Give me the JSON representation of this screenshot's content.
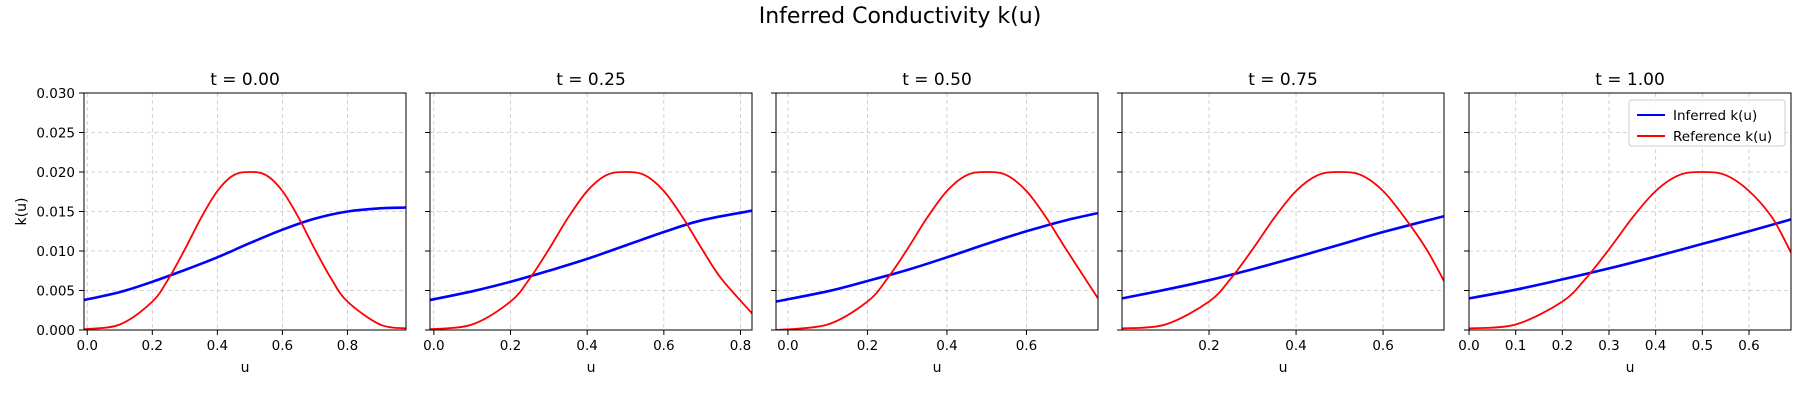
{
  "figure": {
    "title": "Inferred Conductivity k(u)"
  },
  "colors": {
    "inferred": "#0000ff",
    "reference": "#ff0000",
    "grid": "#b0b0b0"
  },
  "chart_data": [
    {
      "type": "line",
      "title": "t = 0.00",
      "xlabel": "u",
      "ylabel": "k(u)",
      "xlim": [
        -0.01,
        0.98
      ],
      "ylim": [
        0,
        0.03
      ],
      "xticks": [
        "0.0",
        "0.2",
        "0.4",
        "0.6",
        "0.8"
      ],
      "yticks": [
        "0.000",
        "0.005",
        "0.010",
        "0.015",
        "0.020",
        "0.025",
        "0.030"
      ],
      "series": [
        {
          "name": "Inferred k(u)",
          "color": "#0000ff",
          "x": [
            -0.01,
            0.1,
            0.2,
            0.3,
            0.4,
            0.5,
            0.6,
            0.7,
            0.8,
            0.9,
            0.98
          ],
          "y": [
            0.0038,
            0.0048,
            0.0061,
            0.0076,
            0.0092,
            0.011,
            0.0127,
            0.0141,
            0.015,
            0.0154,
            0.0155
          ]
        },
        {
          "name": "Reference k(u)",
          "color": "#ff0000",
          "x": [
            -0.01,
            0.1,
            0.2,
            0.25,
            0.3,
            0.35,
            0.4,
            0.45,
            0.5,
            0.55,
            0.6,
            0.65,
            0.7,
            0.75,
            0.8,
            0.9,
            0.98
          ],
          "y": [
            0.0001,
            0.0007,
            0.0036,
            0.0065,
            0.0102,
            0.0142,
            0.0176,
            0.0196,
            0.02,
            0.0196,
            0.0176,
            0.0142,
            0.0102,
            0.0065,
            0.0036,
            0.0007,
            0.0002
          ]
        }
      ]
    },
    {
      "type": "line",
      "title": "t = 0.25",
      "xlabel": "u",
      "ylabel": "",
      "xlim": [
        -0.01,
        0.83
      ],
      "ylim": [
        0,
        0.03
      ],
      "xticks": [
        "0.0",
        "0.2",
        "0.4",
        "0.6",
        "0.8"
      ],
      "yticks": [],
      "series": [
        {
          "name": "Inferred k(u)",
          "color": "#0000ff",
          "x": [
            -0.01,
            0.1,
            0.2,
            0.3,
            0.4,
            0.5,
            0.6,
            0.7,
            0.83
          ],
          "y": [
            0.0038,
            0.0049,
            0.0061,
            0.0075,
            0.009,
            0.0107,
            0.0124,
            0.0139,
            0.0151
          ]
        },
        {
          "name": "Reference k(u)",
          "color": "#ff0000",
          "x": [
            -0.01,
            0.1,
            0.2,
            0.25,
            0.3,
            0.35,
            0.4,
            0.45,
            0.5,
            0.55,
            0.6,
            0.65,
            0.7,
            0.75,
            0.83
          ],
          "y": [
            0.0001,
            0.0007,
            0.0036,
            0.0065,
            0.0102,
            0.0142,
            0.0176,
            0.0196,
            0.02,
            0.0196,
            0.0176,
            0.0142,
            0.0102,
            0.0065,
            0.0021
          ]
        }
      ]
    },
    {
      "type": "line",
      "title": "t = 0.50",
      "xlabel": "u",
      "ylabel": "",
      "xlim": [
        -0.03,
        0.78
      ],
      "ylim": [
        0,
        0.03
      ],
      "xticks": [
        "0.0",
        "0.2",
        "0.4",
        "0.6"
      ],
      "yticks": [],
      "series": [
        {
          "name": "Inferred k(u)",
          "color": "#0000ff",
          "x": [
            -0.03,
            0.1,
            0.2,
            0.3,
            0.4,
            0.5,
            0.6,
            0.7,
            0.78
          ],
          "y": [
            0.0036,
            0.0049,
            0.0062,
            0.0076,
            0.0092,
            0.0109,
            0.0125,
            0.0139,
            0.0148
          ]
        },
        {
          "name": "Reference k(u)",
          "color": "#ff0000",
          "x": [
            -0.03,
            0.1,
            0.2,
            0.25,
            0.3,
            0.35,
            0.4,
            0.45,
            0.5,
            0.55,
            0.6,
            0.65,
            0.7,
            0.78
          ],
          "y": [
            0.0,
            0.0007,
            0.0036,
            0.0065,
            0.0102,
            0.0142,
            0.0176,
            0.0196,
            0.02,
            0.0196,
            0.0176,
            0.0142,
            0.0102,
            0.004
          ]
        }
      ]
    },
    {
      "type": "line",
      "title": "t = 0.75",
      "xlabel": "u",
      "ylabel": "",
      "xlim": [
        0.0,
        0.74
      ],
      "ylim": [
        0,
        0.03
      ],
      "xticks": [
        "0.2",
        "0.4",
        "0.6"
      ],
      "yticks": [],
      "series": [
        {
          "name": "Inferred k(u)",
          "color": "#0000ff",
          "x": [
            0.0,
            0.1,
            0.2,
            0.3,
            0.4,
            0.5,
            0.6,
            0.74
          ],
          "y": [
            0.004,
            0.0051,
            0.0063,
            0.0077,
            0.0092,
            0.0108,
            0.0124,
            0.0144
          ]
        },
        {
          "name": "Reference k(u)",
          "color": "#ff0000",
          "x": [
            0.0,
            0.1,
            0.2,
            0.25,
            0.3,
            0.35,
            0.4,
            0.45,
            0.5,
            0.55,
            0.6,
            0.65,
            0.7,
            0.74
          ],
          "y": [
            0.0002,
            0.0007,
            0.0036,
            0.0065,
            0.0102,
            0.0142,
            0.0176,
            0.0196,
            0.02,
            0.0196,
            0.0176,
            0.0142,
            0.0102,
            0.0062
          ]
        }
      ]
    },
    {
      "type": "line",
      "title": "t = 1.00",
      "xlabel": "u",
      "ylabel": "",
      "xlim": [
        0.0,
        0.69
      ],
      "ylim": [
        0,
        0.03
      ],
      "xticks": [
        "0.0",
        "0.1",
        "0.2",
        "0.3",
        "0.4",
        "0.5",
        "0.6"
      ],
      "yticks": [],
      "legend": {
        "position": "upper right",
        "entries": [
          "Inferred k(u)",
          "Reference k(u)"
        ]
      },
      "series": [
        {
          "name": "Inferred k(u)",
          "color": "#0000ff",
          "x": [
            0.0,
            0.1,
            0.2,
            0.3,
            0.4,
            0.5,
            0.6,
            0.69
          ],
          "y": [
            0.004,
            0.0051,
            0.0064,
            0.0078,
            0.0093,
            0.0109,
            0.0125,
            0.014
          ]
        },
        {
          "name": "Reference k(u)",
          "color": "#ff0000",
          "x": [
            0.0,
            0.1,
            0.2,
            0.25,
            0.3,
            0.35,
            0.4,
            0.45,
            0.5,
            0.55,
            0.6,
            0.65,
            0.69
          ],
          "y": [
            0.0002,
            0.0007,
            0.0036,
            0.0065,
            0.0102,
            0.0142,
            0.0176,
            0.0196,
            0.02,
            0.0196,
            0.0176,
            0.0142,
            0.0098
          ]
        }
      ]
    }
  ]
}
